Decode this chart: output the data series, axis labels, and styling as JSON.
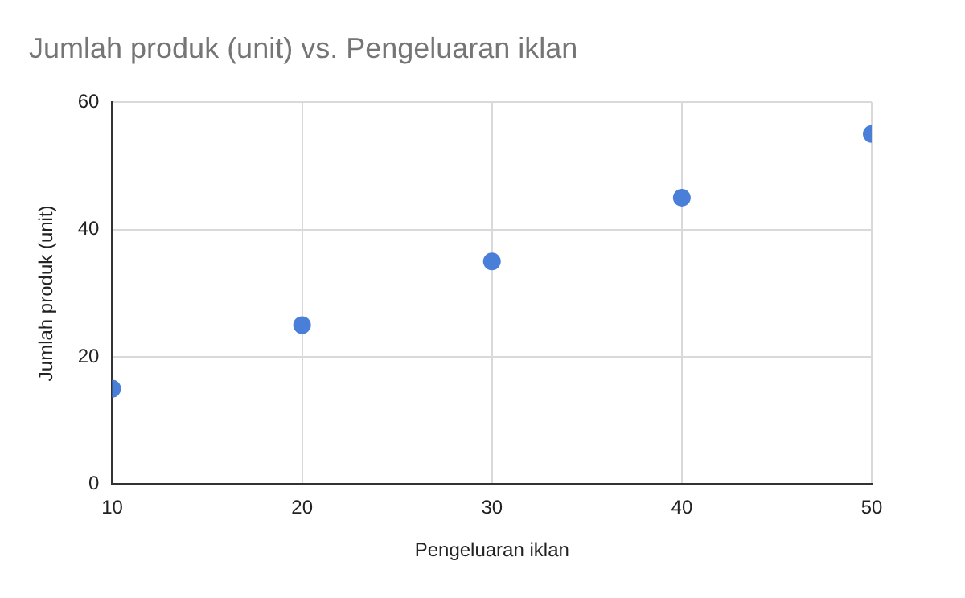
{
  "chart_data": {
    "type": "scatter",
    "title": "Jumlah produk (unit) vs. Pengeluaran iklan",
    "xlabel": "Pengeluaran iklan",
    "ylabel": "Jumlah produk (unit)",
    "x": [
      10,
      20,
      30,
      40,
      50
    ],
    "series": [
      {
        "color": "#4a7fd9",
        "values": [
          15,
          25,
          35,
          45,
          55
        ]
      }
    ],
    "xlim": [
      10,
      50
    ],
    "xticks": [
      10,
      20,
      30,
      40,
      50
    ],
    "ylim": [
      0,
      60
    ],
    "yticks": [
      0,
      20,
      40,
      60
    ],
    "grid": true,
    "legend": false,
    "marker": "circle"
  }
}
